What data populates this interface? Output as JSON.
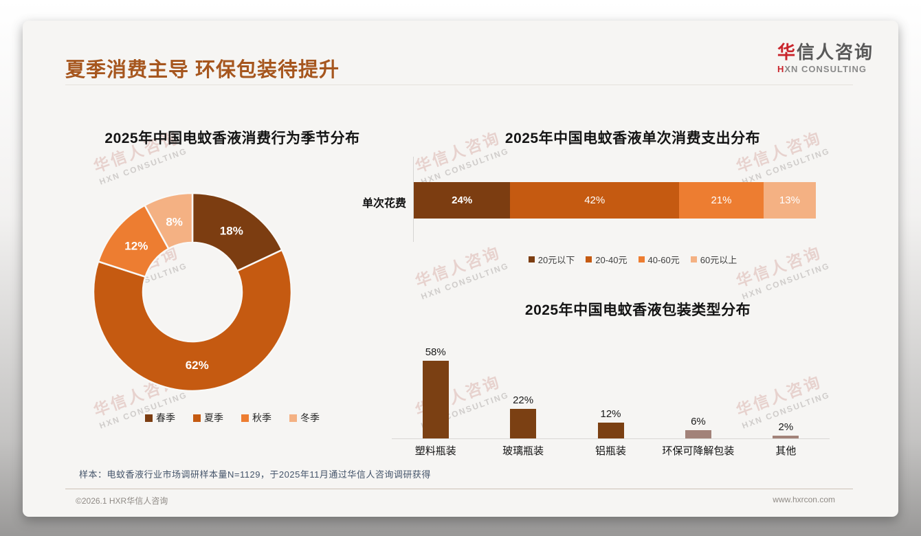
{
  "header": {
    "title": "夏季消费主导 环保包装待提升",
    "logo": {
      "name_red": "华",
      "name_rest": "信人咨询",
      "sub_red": "H",
      "sub_rest": "XN CONSULTING"
    }
  },
  "watermark": {
    "line1": "华信人咨询",
    "line2": "HXN CONSULTING"
  },
  "chart_data": [
    {
      "type": "pie",
      "variant": "donut",
      "title": "2025年中国电蚊香液消费行为季节分布",
      "categories": [
        "春季",
        "夏季",
        "秋季",
        "冬季"
      ],
      "values": [
        18,
        62,
        12,
        8
      ],
      "unit": "%",
      "colors": [
        "#7C3D11",
        "#C55A11",
        "#ED7D31",
        "#F4B183"
      ],
      "legend_position": "bottom"
    },
    {
      "type": "bar",
      "variant": "stacked-horizontal",
      "title": "2025年中国电蚊香液单次消费支出分布",
      "row_label": "单次花费",
      "categories": [
        "20元以下",
        "20-40元",
        "40-60元",
        "60元以上"
      ],
      "values": [
        24,
        42,
        21,
        13
      ],
      "unit": "%",
      "colors": [
        "#7C3D11",
        "#C55A11",
        "#ED7D31",
        "#F4B183"
      ],
      "legend_position": "bottom"
    },
    {
      "type": "bar",
      "variant": "column",
      "title": "2025年中国电蚊香液包装类型分布",
      "categories": [
        "塑料瓶装",
        "玻璃瓶装",
        "铝瓶装",
        "环保可降解包装",
        "其他"
      ],
      "values": [
        58,
        22,
        12,
        6,
        2
      ],
      "unit": "%",
      "colors": [
        "#7B4013",
        "#7B4013",
        "#7B4013",
        "#A28279",
        "#A28279"
      ],
      "ylim": [
        0,
        60
      ],
      "gridlines": false
    }
  ],
  "footnote": "样本：电蚊香液行业市场调研样本量N=1129，于2025年11月通过华信人咨询调研获得",
  "footer": {
    "left": "©2026.1 HXR华信人咨询",
    "right": "www.hxrcon.com"
  }
}
